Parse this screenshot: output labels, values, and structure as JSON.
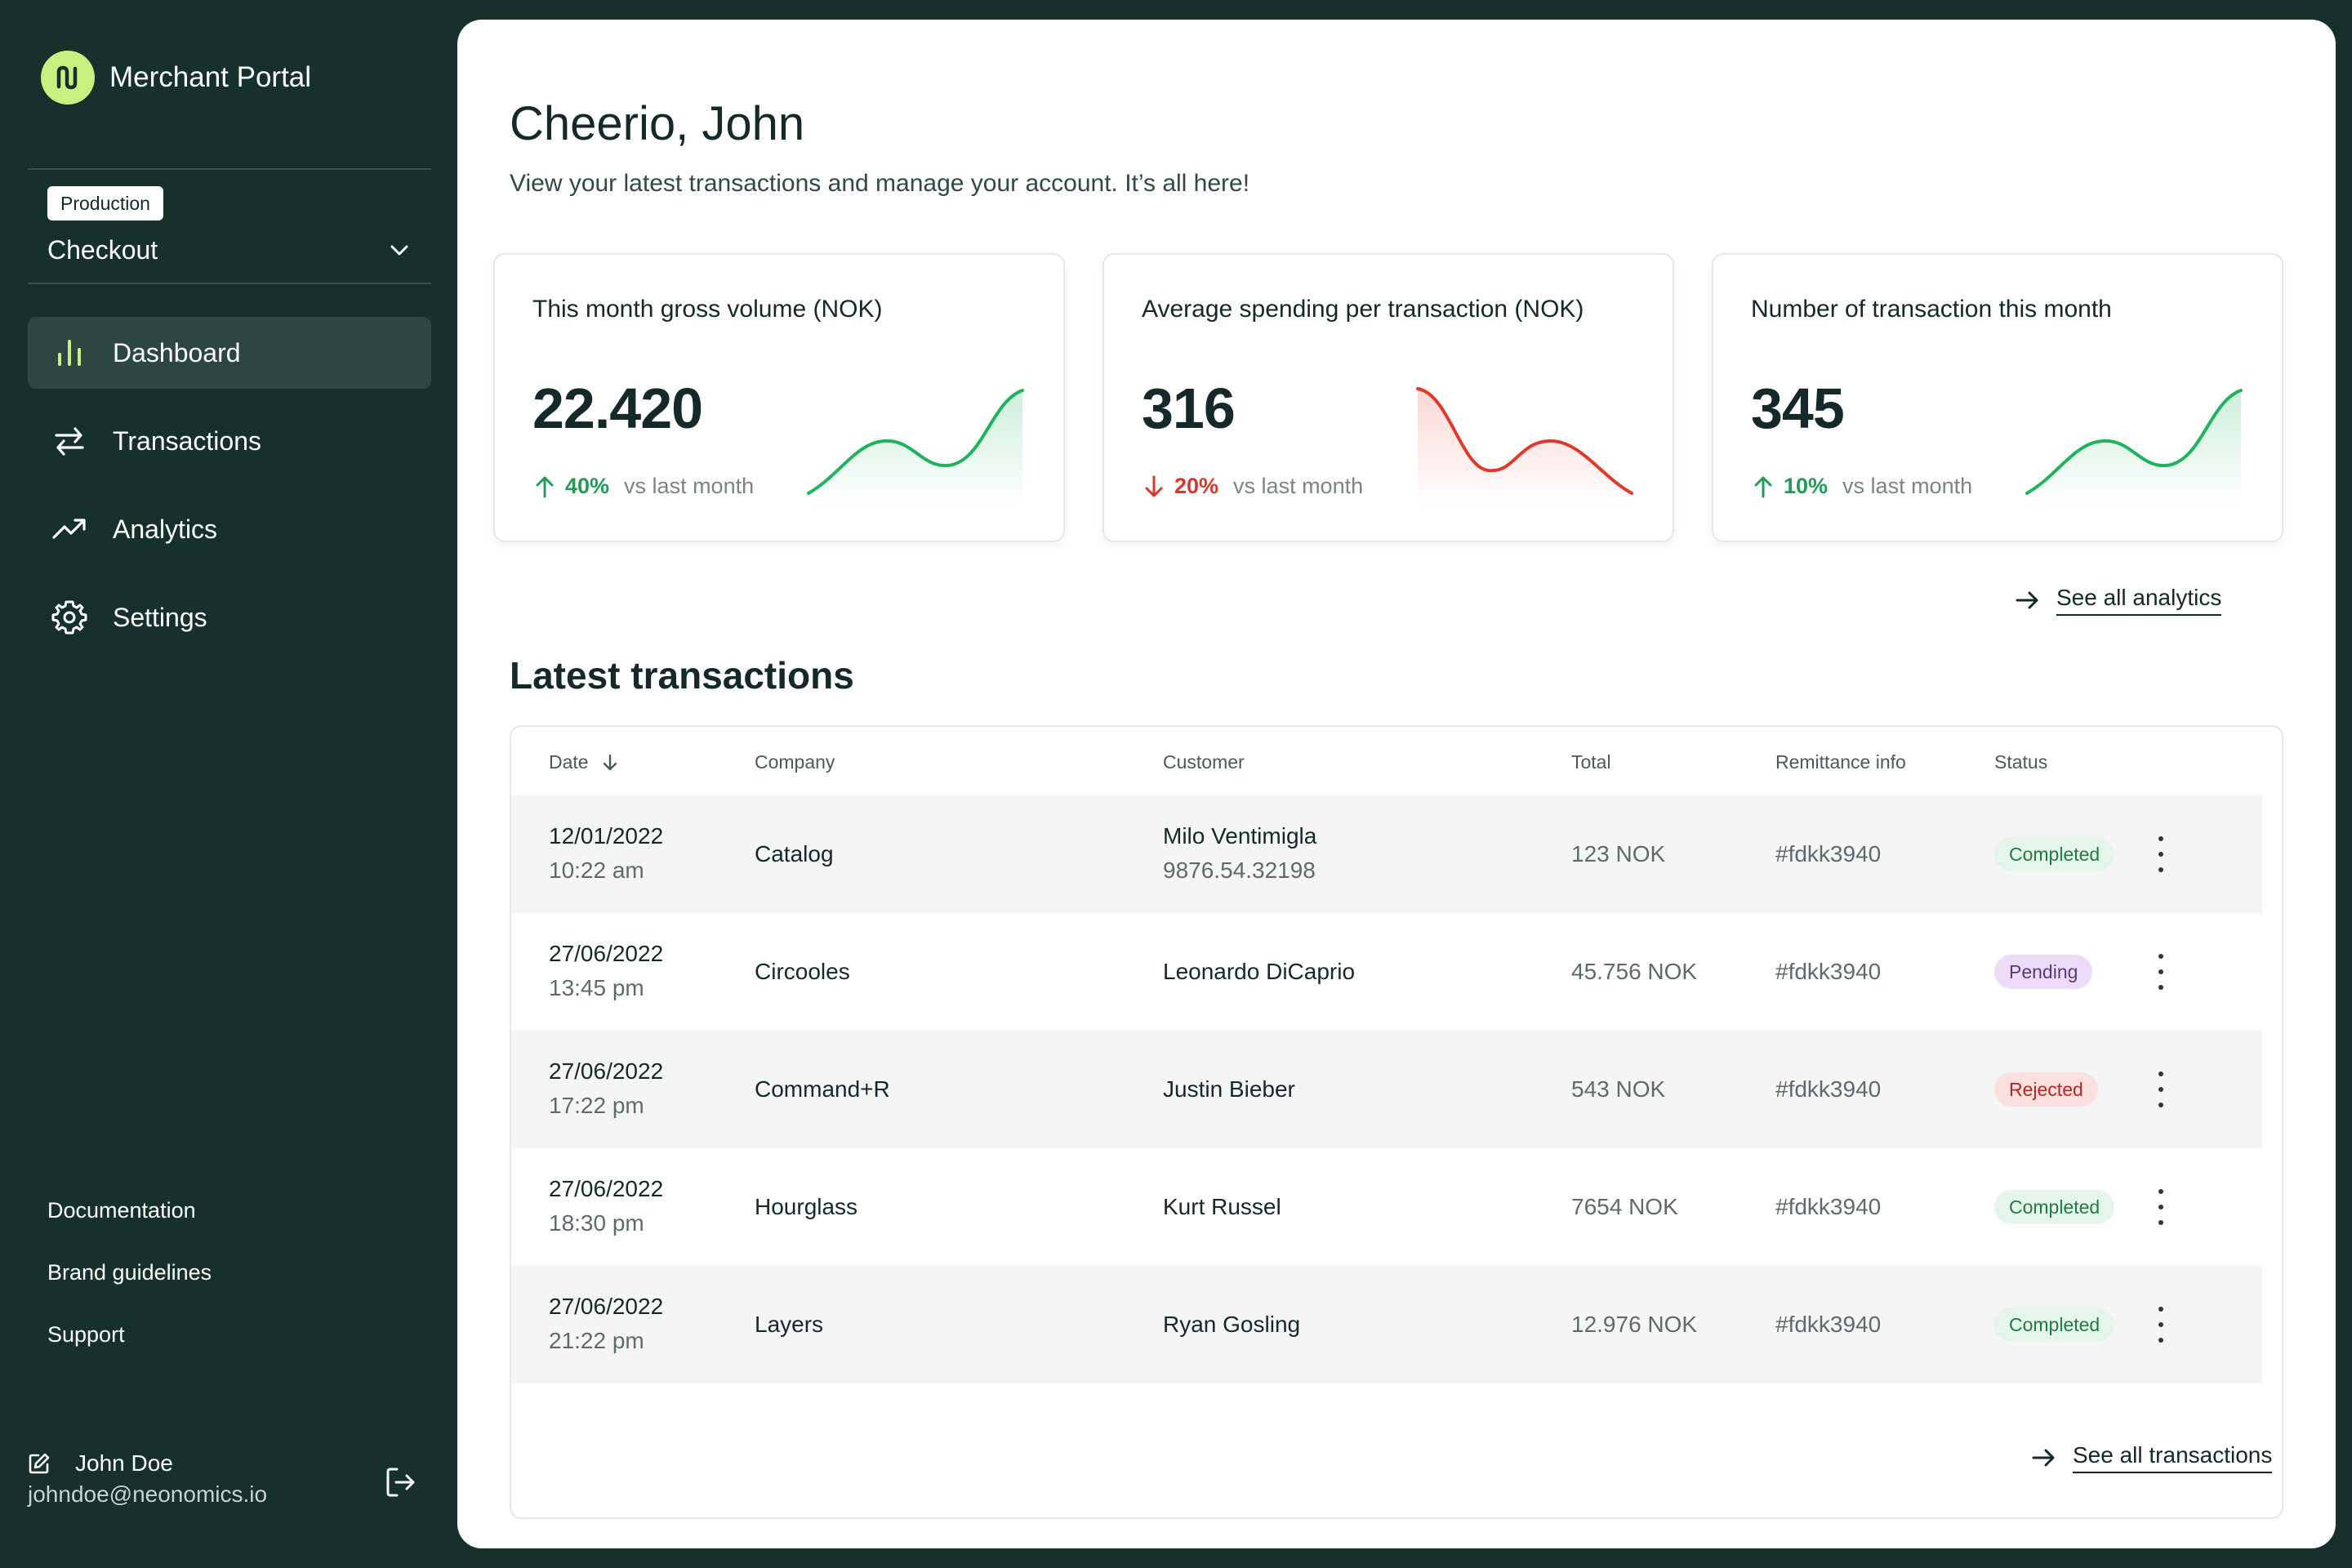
{
  "app": {
    "title": "Merchant Portal"
  },
  "environment": {
    "badge": "Production",
    "selected": "Checkout"
  },
  "nav": [
    {
      "label": "Dashboard",
      "icon": "bar-chart-icon",
      "active": true
    },
    {
      "label": "Transactions",
      "icon": "arrows-swap-icon",
      "active": false
    },
    {
      "label": "Analytics",
      "icon": "trend-up-icon",
      "active": false
    },
    {
      "label": "Settings",
      "icon": "gear-icon",
      "active": false
    }
  ],
  "footer_links": [
    "Documentation",
    "Brand guidelines",
    "Support"
  ],
  "user": {
    "name": "John Doe",
    "email": "johndoe@neonomics.io"
  },
  "header": {
    "greeting": "Cheerio, John",
    "subtitle": "View your latest transactions and manage your account. It’s all here!"
  },
  "cards": [
    {
      "title": "This month gross volume  (NOK)",
      "value": "22.420",
      "trend": "40%",
      "direction": "up",
      "vs": "vs last month",
      "color": "#1fb35b"
    },
    {
      "title": "Average spending per transaction (NOK)",
      "value": "316",
      "trend": "20%",
      "direction": "down",
      "vs": "vs last month",
      "color": "#e0392b"
    },
    {
      "title": "Number of transaction this month",
      "value": "345",
      "trend": "10%",
      "direction": "up",
      "vs": "vs last month",
      "color": "#1fb35b"
    }
  ],
  "links": {
    "see_analytics": "See all analytics",
    "see_transactions": "See all transactions"
  },
  "transactions": {
    "title": "Latest transactions",
    "columns": [
      "Date",
      "Company",
      "Customer",
      "Total",
      "Remittance info",
      "Status"
    ],
    "rows": [
      {
        "date": "12/01/2022",
        "time": "10:22 am",
        "company": "Catalog",
        "customer": "Milo Ventimigla",
        "customer_sub": "9876.54.32198",
        "total": "123 NOK",
        "remittance": "#fdkk3940",
        "status": "Completed",
        "status_type": "completed"
      },
      {
        "date": "27/06/2022",
        "time": "13:45 pm",
        "company": "Circooles",
        "customer": "Leonardo DiCaprio",
        "customer_sub": "",
        "total": "45.756 NOK",
        "remittance": "#fdkk3940",
        "status": "Pending",
        "status_type": "pending"
      },
      {
        "date": "27/06/2022",
        "time": "17:22 pm",
        "company": "Command+R",
        "customer": "Justin Bieber",
        "customer_sub": "",
        "total": "543 NOK",
        "remittance": "#fdkk3940",
        "status": "Rejected",
        "status_type": "rejected"
      },
      {
        "date": "27/06/2022",
        "time": "18:30 pm",
        "company": "Hourglass",
        "customer": "Kurt Russel",
        "customer_sub": "",
        "total": "7654 NOK",
        "remittance": "#fdkk3940",
        "status": "Completed",
        "status_type": "completed"
      },
      {
        "date": "27/06/2022",
        "time": "21:22 pm",
        "company": "Layers",
        "customer": "Ryan Gosling",
        "customer_sub": "",
        "total": "12.976 NOK",
        "remittance": "#fdkk3940",
        "status": "Completed",
        "status_type": "completed"
      }
    ]
  }
}
